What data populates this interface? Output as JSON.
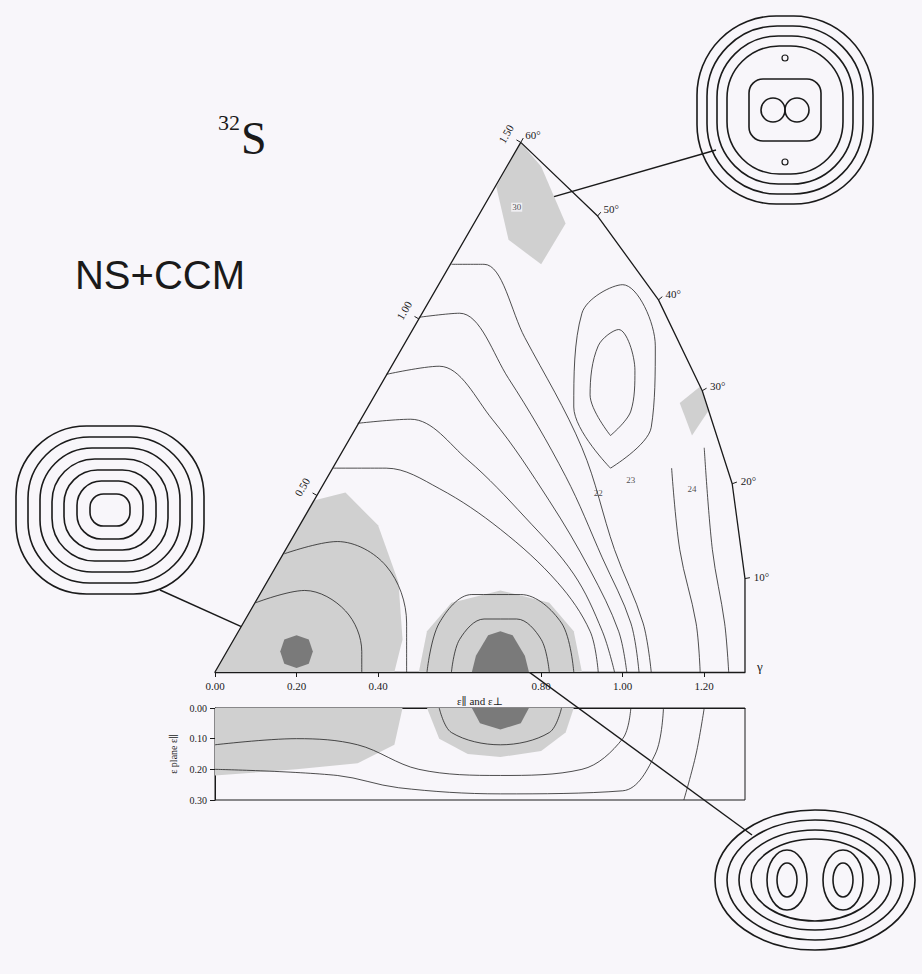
{
  "chart_data": [
    {
      "type": "contour",
      "title": "32S",
      "subtitle": "NS+CCM",
      "x_label": "ε∥ and ε⊥",
      "xlim": [
        0,
        1.3
      ],
      "xticks": [
        {
          "value": 0,
          "label": "0.00"
        },
        {
          "value": 0.2,
          "label": "0.20"
        },
        {
          "value": 0.4,
          "label": "0.40"
        },
        {
          "value": 0.8,
          "label": "0.80"
        },
        {
          "value": 1.0,
          "label": "1.00"
        },
        {
          "value": 1.2,
          "label": "1.20"
        }
      ],
      "beta_ticks": [
        {
          "value": 0.5,
          "label": "0.50"
        },
        {
          "value": 1.0,
          "label": "1.00"
        },
        {
          "value": 1.5,
          "label": "1.50"
        }
      ],
      "gamma_ticks": [
        {
          "value": 10,
          "label": "10°"
        },
        {
          "value": 20,
          "label": "20°"
        },
        {
          "value": 30,
          "label": "30°"
        },
        {
          "value": 40,
          "label": "40°"
        },
        {
          "value": 50,
          "label": "50°"
        },
        {
          "value": 60,
          "label": "60°"
        }
      ],
      "gamma_label": "γ",
      "boundary": [
        [
          1.3,
          0
        ],
        [
          1.32,
          10
        ],
        [
          1.35,
          20
        ],
        [
          1.38,
          30
        ],
        [
          1.42,
          40
        ],
        [
          1.46,
          50
        ],
        [
          1.5,
          60
        ]
      ],
      "regions": [
        {
          "color": "#d0d0d0",
          "points": [
            [
              0,
              0
            ],
            [
              0.24,
              0.42
            ],
            [
              0.32,
              0.44
            ],
            [
              0.4,
              0.36
            ],
            [
              0.45,
              0.22
            ],
            [
              0.46,
              0.08
            ],
            [
              0.44,
              0
            ]
          ]
        },
        {
          "color": "#d0d0d0",
          "points": [
            [
              0.5,
              0
            ],
            [
              0.52,
              0.1
            ],
            [
              0.58,
              0.17
            ],
            [
              0.7,
              0.2
            ],
            [
              0.82,
              0.17
            ],
            [
              0.88,
              0.1
            ],
            [
              0.9,
              0
            ]
          ]
        },
        {
          "color": "#d0d0d0",
          "points": [
            [
              0.69,
              1.19
            ],
            [
              0.75,
              1.299
            ],
            [
              0.8,
              1.24
            ],
            [
              0.86,
              1.1
            ],
            [
              0.8,
              1.0
            ],
            [
              0.72,
              1.06
            ]
          ]
        },
        {
          "color": "#d0d0d0",
          "points": [
            [
              1.14,
              0.66
            ],
            [
              1.19,
              0.7
            ],
            [
              1.21,
              0.64
            ],
            [
              1.17,
              0.58
            ]
          ]
        },
        {
          "color": "#7a7a7a",
          "points": [
            [
              0.16,
              0.05
            ],
            [
              0.17,
              0.08
            ],
            [
              0.2,
              0.09
            ],
            [
              0.23,
              0.08
            ],
            [
              0.24,
              0.05
            ],
            [
              0.23,
              0.02
            ],
            [
              0.2,
              0.01
            ],
            [
              0.17,
              0.02
            ]
          ]
        },
        {
          "color": "#7a7a7a",
          "points": [
            [
              0.63,
              0
            ],
            [
              0.64,
              0.04
            ],
            [
              0.67,
              0.09
            ],
            [
              0.7,
              0.1
            ],
            [
              0.73,
              0.09
            ],
            [
              0.76,
              0.04
            ],
            [
              0.77,
              0
            ]
          ]
        }
      ],
      "contours": [
        [
          [
            0.1,
            0.17
          ],
          [
            0.22,
            0.2
          ],
          [
            0.32,
            0.15
          ],
          [
            0.36,
            0.05
          ],
          [
            0.36,
            0
          ]
        ],
        [
          [
            0.17,
            0.29
          ],
          [
            0.3,
            0.32
          ],
          [
            0.42,
            0.26
          ],
          [
            0.47,
            0.12
          ],
          [
            0.47,
            0
          ]
        ],
        [
          [
            0.58,
            0
          ],
          [
            0.6,
            0.08
          ],
          [
            0.66,
            0.13
          ],
          [
            0.74,
            0.13
          ],
          [
            0.8,
            0.08
          ],
          [
            0.82,
            0
          ]
        ],
        [
          [
            0.52,
            0
          ],
          [
            0.55,
            0.12
          ],
          [
            0.63,
            0.19
          ],
          [
            0.75,
            0.19
          ],
          [
            0.85,
            0.12
          ],
          [
            0.88,
            0
          ]
        ],
        [
          [
            0.29,
            0.5
          ],
          [
            0.42,
            0.5
          ],
          [
            0.55,
            0.45
          ],
          [
            0.7,
            0.35
          ],
          [
            0.84,
            0.22
          ],
          [
            0.92,
            0.1
          ],
          [
            0.94,
            0
          ]
        ],
        [
          [
            0.35,
            0.61
          ],
          [
            0.48,
            0.62
          ],
          [
            0.62,
            0.52
          ],
          [
            0.76,
            0.38
          ],
          [
            0.88,
            0.24
          ],
          [
            0.95,
            0.1
          ],
          [
            0.98,
            0
          ]
        ],
        [
          [
            0.42,
            0.73
          ],
          [
            0.55,
            0.75
          ],
          [
            0.68,
            0.62
          ],
          [
            0.82,
            0.42
          ],
          [
            0.92,
            0.25
          ],
          [
            0.99,
            0.1
          ],
          [
            1.01,
            0
          ]
        ],
        [
          [
            0.5,
            0.87
          ],
          [
            0.6,
            0.88
          ],
          [
            0.72,
            0.72
          ],
          [
            0.86,
            0.48
          ],
          [
            0.95,
            0.28
          ],
          [
            1.02,
            0.12
          ],
          [
            1.04,
            0
          ]
        ],
        [
          [
            0.58,
            1.0
          ],
          [
            0.66,
            1.0
          ],
          [
            0.76,
            0.82
          ],
          [
            0.9,
            0.55
          ],
          [
            0.98,
            0.3
          ],
          [
            1.05,
            0.12
          ],
          [
            1.07,
            0
          ]
        ],
        [
          [
            0.97,
            0.58
          ],
          [
            1.02,
            0.64
          ],
          [
            1.03,
            0.74
          ],
          [
            0.99,
            0.84
          ],
          [
            0.94,
            0.8
          ],
          [
            0.92,
            0.68
          ],
          [
            0.97,
            0.58
          ]
        ],
        [
          [
            0.97,
            0.5
          ],
          [
            1.07,
            0.6
          ],
          [
            1.08,
            0.8
          ],
          [
            1.0,
            0.95
          ],
          [
            0.9,
            0.88
          ],
          [
            0.88,
            0.65
          ],
          [
            0.97,
            0.5
          ]
        ],
        [
          [
            1.12,
            0.5
          ],
          [
            1.14,
            0.3
          ],
          [
            1.18,
            0.12
          ],
          [
            1.19,
            0
          ]
        ],
        [
          [
            1.2,
            0.55
          ],
          [
            1.22,
            0.3
          ],
          [
            1.25,
            0.12
          ],
          [
            1.26,
            0
          ]
        ]
      ],
      "contour_labels": [
        {
          "text": "30",
          "x": 0.74,
          "y": 1.14
        },
        {
          "text": "22",
          "x": 0.94,
          "y": 0.44
        },
        {
          "text": "23",
          "x": 1.02,
          "y": 0.47
        },
        {
          "text": "24",
          "x": 1.17,
          "y": 0.45
        }
      ]
    },
    {
      "type": "contour",
      "y_label": "ε plane ε∥",
      "xlim": [
        0,
        1.3
      ],
      "ylim": [
        0,
        0.3
      ],
      "yticks": [
        {
          "value": 0,
          "label": "0.00"
        },
        {
          "value": 0.1,
          "label": "0.10"
        },
        {
          "value": 0.2,
          "label": "0.20"
        },
        {
          "value": 0.3,
          "label": "0.30"
        }
      ],
      "tick_labels": "y",
      "regions": [
        {
          "color": "#d0d0d0",
          "points": [
            [
              0,
              0
            ],
            [
              0.46,
              0
            ],
            [
              0.44,
              0.12
            ],
            [
              0.35,
              0.18
            ],
            [
              0.2,
              0.2
            ],
            [
              0,
              0.22
            ]
          ]
        },
        {
          "color": "#d0d0d0",
          "points": [
            [
              0.52,
              0
            ],
            [
              0.55,
              0.1
            ],
            [
              0.62,
              0.15
            ],
            [
              0.7,
              0.16
            ],
            [
              0.8,
              0.14
            ],
            [
              0.86,
              0.08
            ],
            [
              0.88,
              0
            ]
          ]
        },
        {
          "color": "#7a7a7a",
          "points": [
            [
              0.63,
              0
            ],
            [
              0.65,
              0.05
            ],
            [
              0.7,
              0.07
            ],
            [
              0.75,
              0.05
            ],
            [
              0.77,
              0
            ]
          ]
        }
      ],
      "contours": [
        [
          [
            0.0,
            0.12
          ],
          [
            0.2,
            0.1
          ],
          [
            0.35,
            0.12
          ],
          [
            0.5,
            0.2
          ],
          [
            0.7,
            0.22
          ],
          [
            0.9,
            0.2
          ],
          [
            1.0,
            0.1
          ],
          [
            1.02,
            0
          ]
        ],
        [
          [
            0.0,
            0.2
          ],
          [
            0.3,
            0.22
          ],
          [
            0.45,
            0.26
          ],
          [
            0.7,
            0.28
          ],
          [
            1.0,
            0.27
          ],
          [
            1.08,
            0.15
          ],
          [
            1.1,
            0
          ]
        ],
        [
          [
            0.55,
            0
          ],
          [
            0.58,
            0.08
          ],
          [
            0.7,
            0.12
          ],
          [
            0.82,
            0.08
          ],
          [
            0.85,
            0
          ]
        ],
        [
          [
            1.15,
            0.3
          ],
          [
            1.18,
            0.15
          ],
          [
            1.2,
            0
          ]
        ]
      ]
    }
  ]
}
